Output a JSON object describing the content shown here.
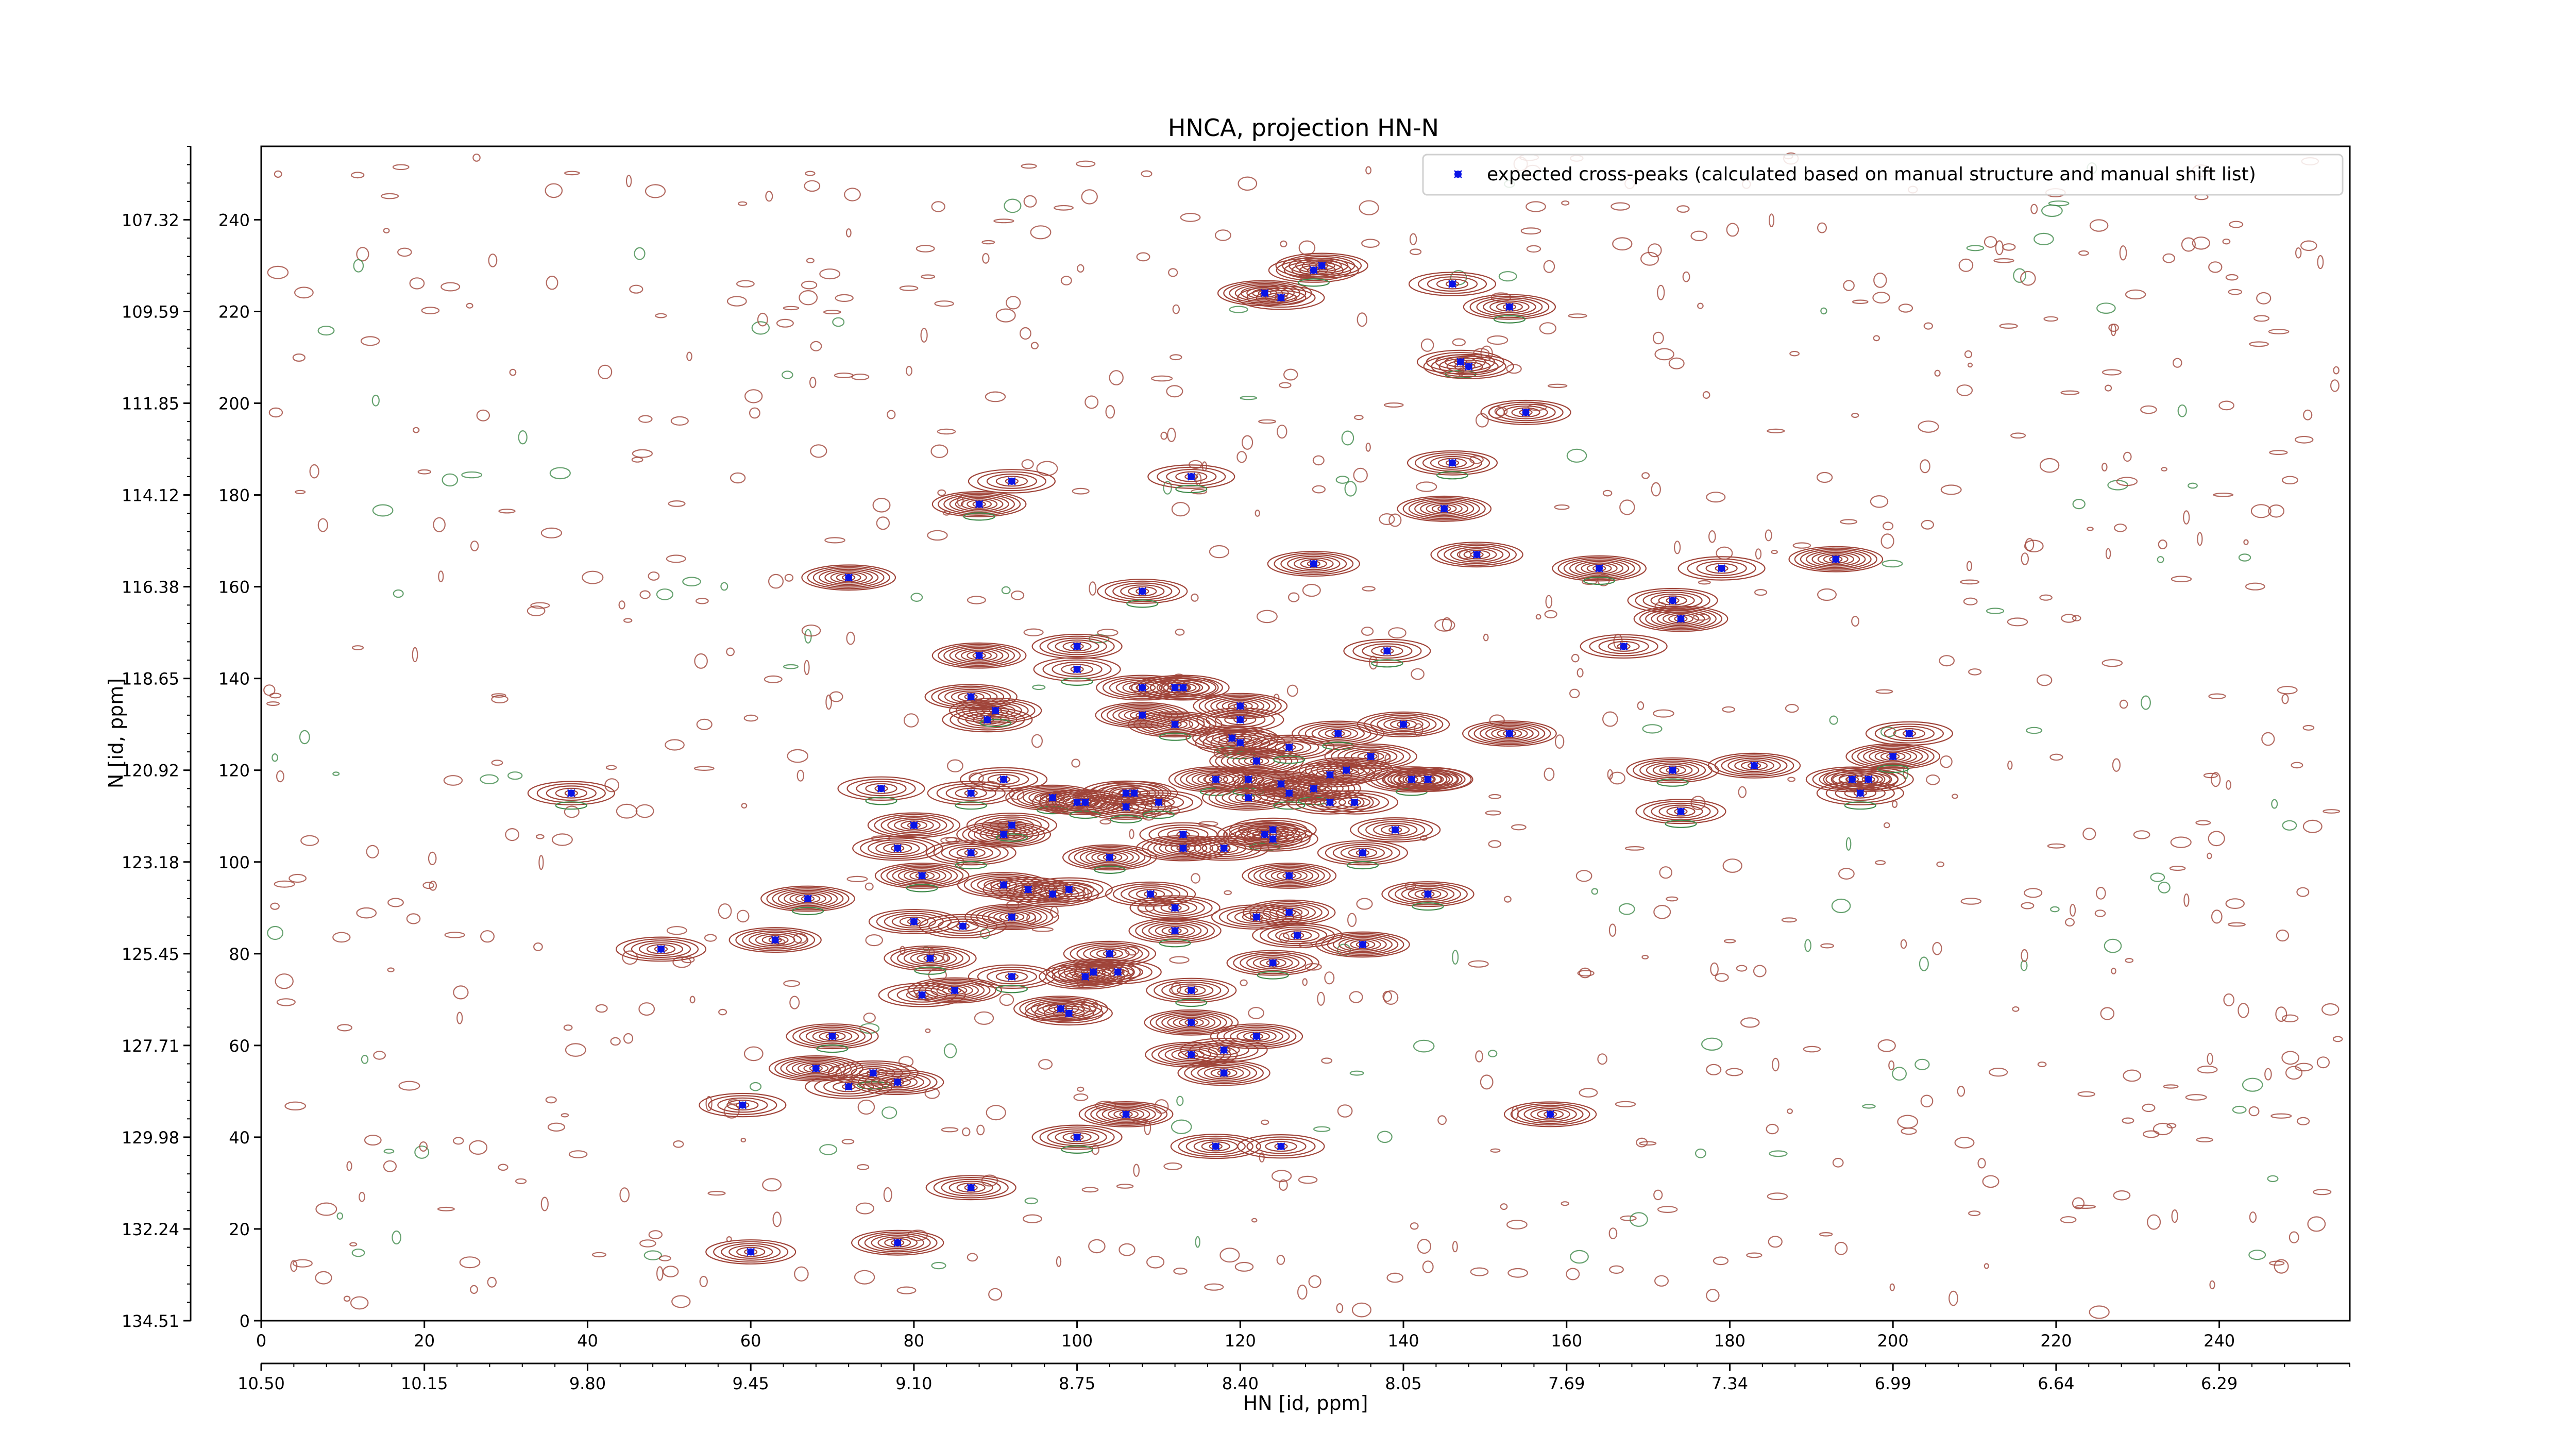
{
  "chart_data": {
    "type": "scatter",
    "title": "HNCA, projection HN-N",
    "xlabel": "HN [id, ppm]",
    "ylabel": "N [id, ppm]",
    "xlim": [
      0,
      256
    ],
    "ylim": [
      0,
      256
    ],
    "x_index_ticks": [
      "0",
      "20",
      "40",
      "60",
      "80",
      "100",
      "120",
      "140",
      "160",
      "180",
      "200",
      "220",
      "240"
    ],
    "x_ppm_ticks": [
      "10.50",
      "10.15",
      "9.80",
      "9.45",
      "9.10",
      "8.75",
      "8.40",
      "8.05",
      "7.69",
      "7.34",
      "6.99",
      "6.64",
      "6.29"
    ],
    "y_index_ticks": [
      "0",
      "20",
      "40",
      "60",
      "80",
      "100",
      "120",
      "140",
      "160",
      "180",
      "200",
      "220",
      "240"
    ],
    "y_ppm_ticks": [
      "134.51",
      "132.24",
      "129.98",
      "127.71",
      "125.45",
      "123.18",
      "120.92",
      "118.65",
      "116.38",
      "114.12",
      "111.85",
      "109.59",
      "107.32"
    ],
    "legend": {
      "label": "expected cross-peaks (calculated based on manual structure and manual shift list)",
      "position": "top-right"
    },
    "colors": {
      "positive_contours": "#a0453a",
      "negative_contours": "#3f8a4a",
      "peaks": "#0a14e6"
    },
    "series": [
      {
        "name": "expected cross-peaks (calculated based on manual structure and manual shift list)",
        "points": [
          [
            38,
            115
          ],
          [
            49,
            81
          ],
          [
            63,
            83
          ],
          [
            67,
            92
          ],
          [
            59,
            47
          ],
          [
            60,
            15
          ],
          [
            70,
            62
          ],
          [
            68,
            55
          ],
          [
            72,
            51
          ],
          [
            75,
            54
          ],
          [
            78,
            52
          ],
          [
            72,
            162
          ],
          [
            76,
            116
          ],
          [
            78,
            103
          ],
          [
            80,
            108
          ],
          [
            81,
            97
          ],
          [
            81,
            71
          ],
          [
            80,
            87
          ],
          [
            82,
            79
          ],
          [
            85,
            72
          ],
          [
            86,
            86
          ],
          [
            87,
            102
          ],
          [
            87,
            136
          ],
          [
            88,
            145
          ],
          [
            87,
            115
          ],
          [
            87,
            29
          ],
          [
            78,
            17
          ],
          [
            88,
            178
          ],
          [
            92,
            183
          ],
          [
            89,
            131
          ],
          [
            90,
            133
          ],
          [
            91,
            106
          ],
          [
            91,
            118
          ],
          [
            92,
            108
          ],
          [
            91,
            95
          ],
          [
            92,
            88
          ],
          [
            92,
            75
          ],
          [
            94,
            94
          ],
          [
            97,
            93
          ],
          [
            97,
            114
          ],
          [
            99,
            94
          ],
          [
            100,
            113
          ],
          [
            101,
            113
          ],
          [
            98,
            68
          ],
          [
            99,
            67
          ],
          [
            100,
            40
          ],
          [
            101,
            75
          ],
          [
            102,
            76
          ],
          [
            100,
            142
          ],
          [
            100,
            147
          ],
          [
            104,
            80
          ],
          [
            104,
            101
          ],
          [
            105,
            76
          ],
          [
            106,
            115
          ],
          [
            106,
            112
          ],
          [
            106,
            45
          ],
          [
            107,
            115
          ],
          [
            108,
            159
          ],
          [
            108,
            138
          ],
          [
            108,
            132
          ],
          [
            110,
            113
          ],
          [
            109,
            93
          ],
          [
            113,
            138
          ],
          [
            112,
            130
          ],
          [
            112,
            138
          ],
          [
            112,
            90
          ],
          [
            112,
            85
          ],
          [
            113,
            103
          ],
          [
            113,
            106
          ],
          [
            114,
            72
          ],
          [
            114,
            58
          ],
          [
            114,
            65
          ],
          [
            114,
            184
          ],
          [
            117,
            38
          ],
          [
            118,
            54
          ],
          [
            117,
            118
          ],
          [
            118,
            59
          ],
          [
            118,
            103
          ],
          [
            119,
            127
          ],
          [
            120,
            134
          ],
          [
            120,
            131
          ],
          [
            120,
            126
          ],
          [
            121,
            114
          ],
          [
            122,
            122
          ],
          [
            121,
            118
          ],
          [
            122,
            88
          ],
          [
            122,
            62
          ],
          [
            123,
            106
          ],
          [
            124,
            107
          ],
          [
            124,
            105
          ],
          [
            124,
            78
          ],
          [
            125,
            117
          ],
          [
            125,
            38
          ],
          [
            126,
            125
          ],
          [
            126,
            89
          ],
          [
            126,
            97
          ],
          [
            126,
            115
          ],
          [
            127,
            84
          ],
          [
            129,
            165
          ],
          [
            129,
            116
          ],
          [
            131,
            113
          ],
          [
            131,
            119
          ],
          [
            132,
            128
          ],
          [
            133,
            120
          ],
          [
            134,
            113
          ],
          [
            135,
            102
          ],
          [
            136,
            123
          ],
          [
            135,
            82
          ],
          [
            138,
            146
          ],
          [
            139,
            107
          ],
          [
            140,
            130
          ],
          [
            141,
            118
          ],
          [
            143,
            118
          ],
          [
            143,
            118
          ],
          [
            143,
            93
          ],
          [
            145,
            177
          ],
          [
            146,
            226
          ],
          [
            146,
            187
          ],
          [
            149,
            167
          ],
          [
            153,
            128
          ],
          [
            147,
            209
          ],
          [
            155,
            198
          ],
          [
            158,
            45
          ],
          [
            164,
            164
          ],
          [
            167,
            147
          ],
          [
            173,
            157
          ],
          [
            173,
            120
          ],
          [
            174,
            153
          ],
          [
            179,
            164
          ],
          [
            174,
            111
          ],
          [
            183,
            121
          ],
          [
            193,
            166
          ],
          [
            196,
            115
          ],
          [
            197,
            118
          ],
          [
            195,
            118
          ],
          [
            200,
            123
          ],
          [
            202,
            128
          ],
          [
            148,
            208
          ],
          [
            153,
            221
          ],
          [
            123,
            224
          ],
          [
            125,
            223
          ],
          [
            129,
            229
          ],
          [
            130,
            230
          ]
        ]
      }
    ]
  }
}
